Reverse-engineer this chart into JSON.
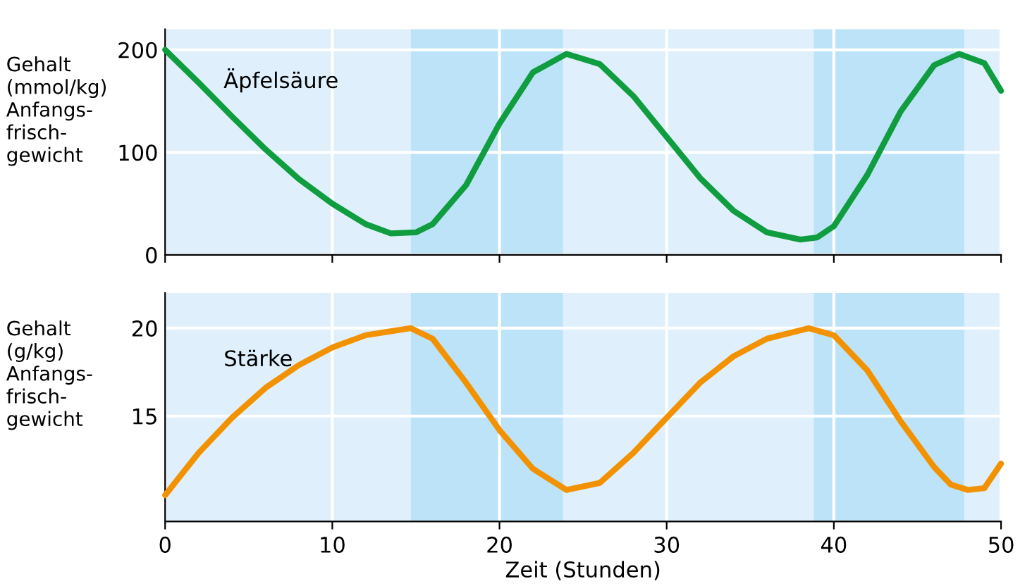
{
  "chart_data": [
    {
      "type": "line",
      "ylabel": "Gehalt\n(mmol/kg)\nAnfangs-\nfrisch-\ngewicht",
      "xlim": [
        0,
        50
      ],
      "ylim": [
        0,
        220
      ],
      "xticks": [
        0,
        10,
        20,
        30,
        40,
        50
      ],
      "yticks": [
        0,
        100,
        200
      ],
      "tick_labels": "y",
      "grid": true,
      "legend": false,
      "x": [
        0,
        2,
        4,
        6,
        8,
        10,
        12,
        13.5,
        15,
        16,
        18,
        20,
        22,
        24,
        26,
        28,
        30,
        32,
        34,
        36,
        38,
        39,
        40,
        42,
        44,
        46,
        47.5,
        49,
        50
      ],
      "series": [
        {
          "name": "Äpfelsäure",
          "color": "#0f9d3f",
          "values": [
            200,
            168,
            135,
            103,
            74,
            50,
            30,
            21,
            22,
            30,
            68,
            128,
            178,
            196,
            186,
            155,
            115,
            75,
            43,
            22,
            15,
            17,
            28,
            78,
            140,
            185,
            196,
            187,
            160
          ]
        }
      ],
      "bands": [
        {
          "axis": "x",
          "from": 14.7,
          "to": 23.8,
          "color": "#bde3f8"
        },
        {
          "axis": "x",
          "from": 38.8,
          "to": 47.8,
          "color": "#bde3f8"
        }
      ]
    },
    {
      "type": "line",
      "xlabel": "Zeit (Stunden)",
      "ylabel": "Gehalt\n(g/kg)\nAnfangs-\nfrisch-\ngewicht",
      "xlim": [
        0,
        50
      ],
      "ylim": [
        9,
        22
      ],
      "xticks": [
        0,
        10,
        20,
        30,
        40,
        50
      ],
      "yticks": [
        15,
        20
      ],
      "grid": true,
      "legend": false,
      "x": [
        0,
        2,
        4,
        6,
        8,
        10,
        12,
        14.7,
        16,
        18,
        20,
        22,
        24,
        26,
        28,
        30,
        32,
        34,
        36,
        38.5,
        40,
        42,
        44,
        46,
        47,
        48,
        49,
        50
      ],
      "series": [
        {
          "name": "Stärke",
          "color": "#f39200",
          "values": [
            10.5,
            12.9,
            14.9,
            16.6,
            17.9,
            18.9,
            19.6,
            20,
            19.4,
            16.9,
            14.2,
            12.0,
            10.8,
            11.2,
            12.9,
            14.9,
            16.9,
            18.4,
            19.4,
            20,
            19.6,
            17.6,
            14.7,
            12.1,
            11.1,
            10.8,
            10.9,
            12.3
          ]
        }
      ],
      "bands": [
        {
          "axis": "x",
          "from": 14.7,
          "to": 23.8,
          "color": "#bde3f8"
        },
        {
          "axis": "x",
          "from": 38.8,
          "to": 47.8,
          "color": "#bde3f8"
        }
      ]
    }
  ]
}
